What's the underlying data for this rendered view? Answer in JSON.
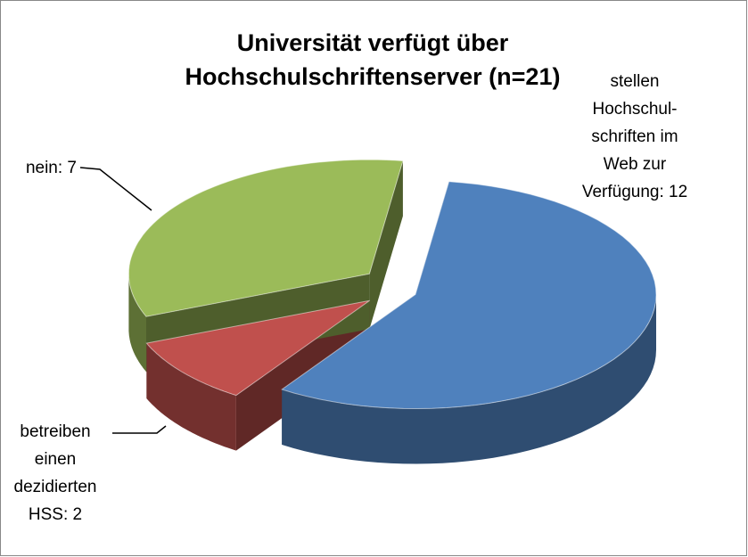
{
  "chart_data": {
    "type": "pie3d",
    "title": "Universität verfügt über\nHochschulschriftenserver (n=21)",
    "values": [
      12,
      2,
      7
    ],
    "value_labels": [
      "stellen\nHochschul-\nschriften im\nWeb zur\nVerfügung: 12",
      "betreiben\neinen\ndezidierten\nHSS: 2",
      "nein: 7"
    ],
    "colors": [
      "#4f81bd",
      "#c0504d",
      "#9bbb59"
    ]
  }
}
